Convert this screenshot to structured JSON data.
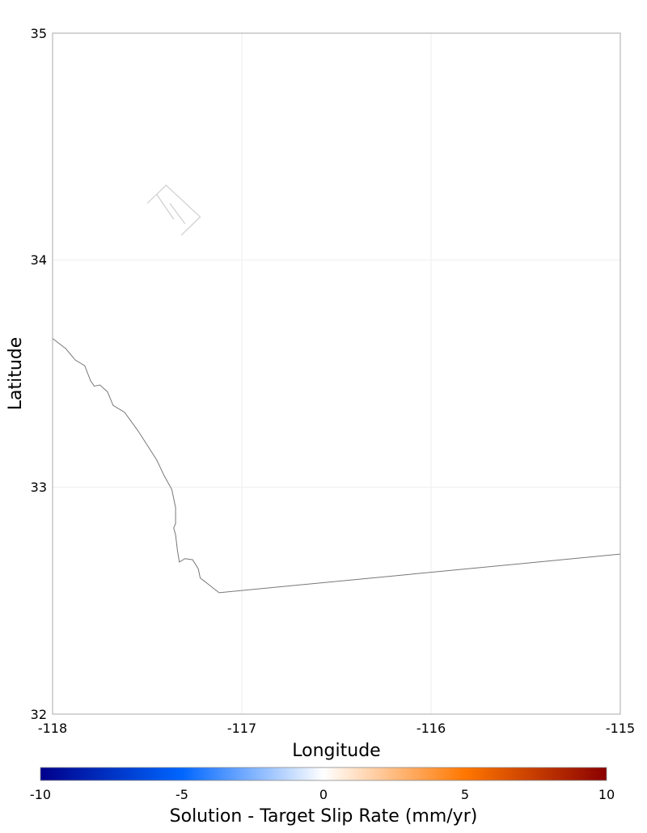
{
  "map": {
    "xlabel": "Longitude",
    "ylabel": "Latitude",
    "xlim": [
      -118,
      -115
    ],
    "ylim": [
      32,
      35
    ],
    "x_ticks": [
      "-118",
      "-117",
      "-116",
      "-115"
    ],
    "y_ticks": [
      "32",
      "33",
      "34",
      "35"
    ],
    "grid": true,
    "frame_color": "#aaaaaa",
    "grid_color": "#eeeeee",
    "coastline_color": "#777777",
    "coastline": [
      [
        -118.0,
        33.655
      ],
      [
        -117.93,
        33.61
      ],
      [
        -117.88,
        33.56
      ],
      [
        -117.83,
        33.535
      ],
      [
        -117.8,
        33.47
      ],
      [
        -117.78,
        33.445
      ],
      [
        -117.75,
        33.45
      ],
      [
        -117.71,
        33.42
      ],
      [
        -117.68,
        33.36
      ],
      [
        -117.62,
        33.33
      ],
      [
        -117.55,
        33.25
      ],
      [
        -117.45,
        33.12
      ],
      [
        -117.41,
        33.05
      ],
      [
        -117.37,
        32.99
      ],
      [
        -117.35,
        32.91
      ],
      [
        -117.35,
        32.84
      ],
      [
        -117.36,
        32.82
      ],
      [
        -117.35,
        32.79
      ],
      [
        -117.34,
        32.72
      ],
      [
        -117.33,
        32.67
      ],
      [
        -117.3,
        32.685
      ],
      [
        -117.26,
        32.68
      ],
      [
        -117.23,
        32.64
      ],
      [
        -117.22,
        32.6
      ],
      [
        -117.12,
        32.535
      ],
      [
        -115.0,
        32.705
      ]
    ],
    "fault_color": "#cfcfcf",
    "faults": [
      [
        [
          -117.5,
          34.25
        ],
        [
          -117.4,
          34.33
        ],
        [
          -117.22,
          34.19
        ],
        [
          -117.32,
          34.11
        ]
      ],
      [
        [
          -117.45,
          34.29
        ],
        [
          -117.36,
          34.18
        ]
      ],
      [
        [
          -117.38,
          34.25
        ],
        [
          -117.3,
          34.16
        ]
      ]
    ]
  },
  "colorbar": {
    "label": "Solution - Target Slip Rate (mm/yr)",
    "range": [
      -10,
      10
    ],
    "ticks": [
      "-10",
      "-5",
      "0",
      "5",
      "10"
    ],
    "colors": [
      "#00008b",
      "#0066ff",
      "#ffffff",
      "#ff7700",
      "#8b0000"
    ]
  }
}
